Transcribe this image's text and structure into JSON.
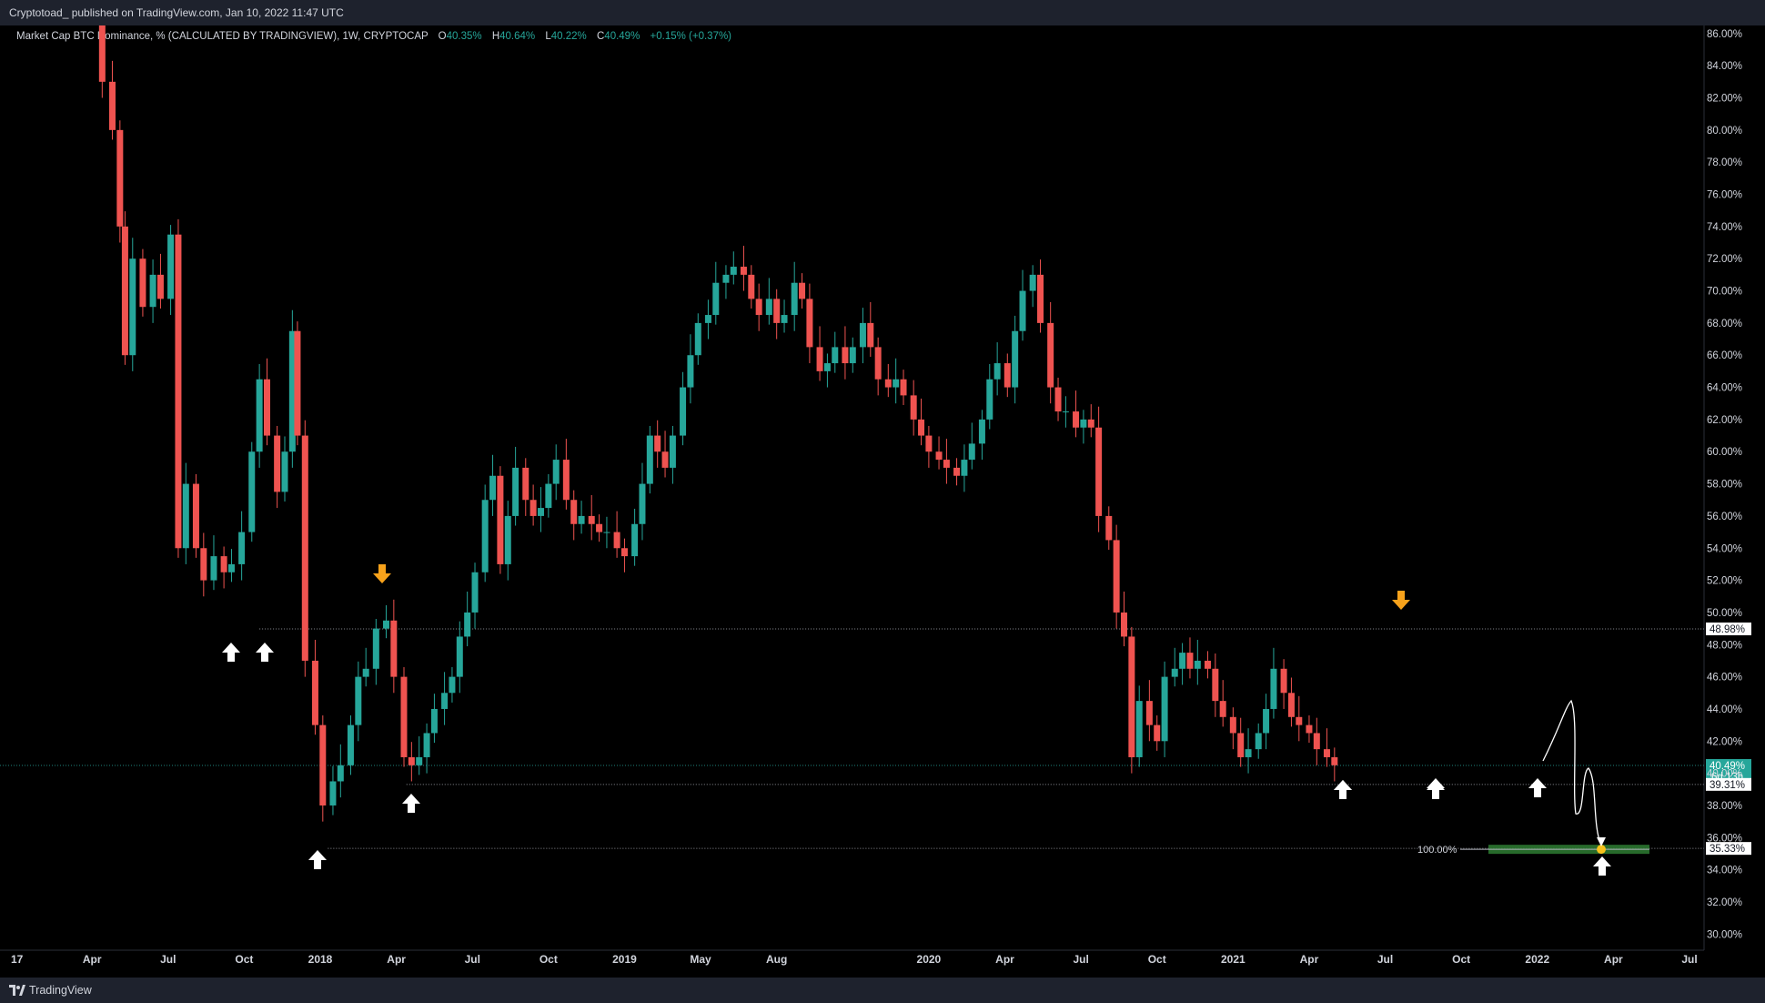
{
  "header": {
    "published": "Cryptotoad_ published on TradingView.com, Jan 10, 2022 11:47 UTC"
  },
  "legend": {
    "symbol": "Market Cap BTC Dominance, % (CALCULATED BY TRADINGVIEW), 1W, CRYPTOCAP",
    "o_label": "O",
    "o_value": "40.35%",
    "h_label": "H",
    "h_value": "40.64%",
    "l_label": "L",
    "l_value": "40.22%",
    "c_label": "C",
    "c_value": "40.49%",
    "change": "+0.15% (+0.37%)"
  },
  "footer": {
    "brand": "TradingView"
  },
  "colors": {
    "up": "#26a69a",
    "down": "#ef5350",
    "background": "#000000",
    "orange_arrow": "#f7a21b",
    "target_zone": "#2e7d32"
  },
  "chart_data": {
    "type": "candlestick",
    "timeframe": "1W",
    "y_unit": "%",
    "ylim": [
      29,
      86.5
    ],
    "y_ticks": [
      "86.00%",
      "84.00%",
      "82.00%",
      "80.00%",
      "78.00%",
      "76.00%",
      "74.00%",
      "72.00%",
      "70.00%",
      "68.00%",
      "66.00%",
      "64.00%",
      "62.00%",
      "60.00%",
      "58.00%",
      "56.00%",
      "54.00%",
      "52.00%",
      "50.00%",
      "48.00%",
      "46.00%",
      "44.00%",
      "42.00%",
      "40.00%",
      "38.00%",
      "36.00%",
      "34.00%",
      "32.00%",
      "30.00%"
    ],
    "x_ticks": [
      {
        "t": 0,
        "label": "17"
      },
      {
        "t": 3.2,
        "label": "Apr"
      },
      {
        "t": 6.2,
        "label": "Jul"
      },
      {
        "t": 9.2,
        "label": "Oct"
      },
      {
        "t": 12.2,
        "label": "2018"
      },
      {
        "t": 15.2,
        "label": "Apr"
      },
      {
        "t": 18.2,
        "label": "Jul"
      },
      {
        "t": 21.2,
        "label": "Oct"
      },
      {
        "t": 24.2,
        "label": "2019"
      },
      {
        "t": 27.2,
        "label": "May"
      },
      {
        "t": 30.2,
        "label": "Aug"
      },
      {
        "t": 36.2,
        "label": "2020"
      },
      {
        "t": 39.2,
        "label": "Apr"
      },
      {
        "t": 42.2,
        "label": "Jul"
      },
      {
        "t": 45.2,
        "label": "Oct"
      },
      {
        "t": 48.2,
        "label": "2021"
      },
      {
        "t": 51.2,
        "label": "Apr"
      },
      {
        "t": 54.2,
        "label": "Jul"
      },
      {
        "t": 57.2,
        "label": "Oct"
      },
      {
        "t": 60.2,
        "label": "2022"
      },
      {
        "t": 63.2,
        "label": "Apr"
      },
      {
        "t": 66.2,
        "label": "Jul"
      }
    ],
    "close_series": [
      [
        2.8,
        86.5
      ],
      [
        3.6,
        83.0
      ],
      [
        4.0,
        80.0
      ],
      [
        4.3,
        74.0
      ],
      [
        4.5,
        66.0
      ],
      [
        4.8,
        72.0
      ],
      [
        5.2,
        69.0
      ],
      [
        5.6,
        71.0
      ],
      [
        5.9,
        69.5
      ],
      [
        6.3,
        73.5
      ],
      [
        6.6,
        54.0
      ],
      [
        6.9,
        58.0
      ],
      [
        7.3,
        54.0
      ],
      [
        7.6,
        52.0
      ],
      [
        8.0,
        53.5
      ],
      [
        8.4,
        52.5
      ],
      [
        8.7,
        53.0
      ],
      [
        9.1,
        55.0
      ],
      [
        9.5,
        60.0
      ],
      [
        9.8,
        64.5
      ],
      [
        10.1,
        61.0
      ],
      [
        10.5,
        57.5
      ],
      [
        10.8,
        60.0
      ],
      [
        11.1,
        67.5
      ],
      [
        11.3,
        61.0
      ],
      [
        11.6,
        47.0
      ],
      [
        12.0,
        43.0
      ],
      [
        12.3,
        38.0
      ],
      [
        12.7,
        39.5
      ],
      [
        13.0,
        40.5
      ],
      [
        13.4,
        43.0
      ],
      [
        13.7,
        46.0
      ],
      [
        14.0,
        46.5
      ],
      [
        14.4,
        49.0
      ],
      [
        14.8,
        49.5
      ],
      [
        15.1,
        46.0
      ],
      [
        15.5,
        41.0
      ],
      [
        15.8,
        40.5
      ],
      [
        16.1,
        41.0
      ],
      [
        16.4,
        42.5
      ],
      [
        16.7,
        44.0
      ],
      [
        17.1,
        45.0
      ],
      [
        17.4,
        46.0
      ],
      [
        17.7,
        48.5
      ],
      [
        18.0,
        50.0
      ],
      [
        18.3,
        52.5
      ],
      [
        18.7,
        57.0
      ],
      [
        19.0,
        58.5
      ],
      [
        19.3,
        53.0
      ],
      [
        19.6,
        56.0
      ],
      [
        19.9,
        59.0
      ],
      [
        20.3,
        57.0
      ],
      [
        20.6,
        56.0
      ],
      [
        20.9,
        56.5
      ],
      [
        21.2,
        58.0
      ],
      [
        21.5,
        59.5
      ],
      [
        21.9,
        57.0
      ],
      [
        22.2,
        55.5
      ],
      [
        22.5,
        56.0
      ],
      [
        22.9,
        55.5
      ],
      [
        23.2,
        55.0
      ],
      [
        23.5,
        55.0
      ],
      [
        23.9,
        54.0
      ],
      [
        24.2,
        53.5
      ],
      [
        24.6,
        55.5
      ],
      [
        24.9,
        58.0
      ],
      [
        25.2,
        61.0
      ],
      [
        25.5,
        60.0
      ],
      [
        25.8,
        59.0
      ],
      [
        26.1,
        61.0
      ],
      [
        26.5,
        64.0
      ],
      [
        26.8,
        66.0
      ],
      [
        27.1,
        68.0
      ],
      [
        27.5,
        68.5
      ],
      [
        27.8,
        70.5
      ],
      [
        28.2,
        71.0
      ],
      [
        28.5,
        71.5
      ],
      [
        28.9,
        71.0
      ],
      [
        29.2,
        69.5
      ],
      [
        29.5,
        68.5
      ],
      [
        29.9,
        69.5
      ],
      [
        30.2,
        68.0
      ],
      [
        30.5,
        68.5
      ],
      [
        30.9,
        70.5
      ],
      [
        31.2,
        69.5
      ],
      [
        31.5,
        66.5
      ],
      [
        31.9,
        65.0
      ],
      [
        32.2,
        65.5
      ],
      [
        32.5,
        66.5
      ],
      [
        32.9,
        65.5
      ],
      [
        33.2,
        66.5
      ],
      [
        33.6,
        68.0
      ],
      [
        33.9,
        66.5
      ],
      [
        34.2,
        64.5
      ],
      [
        34.6,
        64.0
      ],
      [
        34.9,
        64.5
      ],
      [
        35.2,
        63.5
      ],
      [
        35.6,
        62.0
      ],
      [
        35.9,
        61.0
      ],
      [
        36.2,
        60.0
      ],
      [
        36.6,
        59.5
      ],
      [
        36.9,
        59.0
      ],
      [
        37.3,
        58.5
      ],
      [
        37.6,
        59.5
      ],
      [
        37.9,
        60.5
      ],
      [
        38.3,
        62.0
      ],
      [
        38.6,
        64.5
      ],
      [
        38.9,
        65.5
      ],
      [
        39.3,
        64.0
      ],
      [
        39.6,
        67.5
      ],
      [
        39.9,
        70.0
      ],
      [
        40.3,
        71.0
      ],
      [
        40.6,
        68.0
      ],
      [
        41.0,
        64.0
      ],
      [
        41.3,
        62.5
      ],
      [
        41.6,
        62.5
      ],
      [
        42.0,
        61.5
      ],
      [
        42.3,
        62.0
      ],
      [
        42.6,
        61.5
      ],
      [
        42.9,
        56.0
      ],
      [
        43.3,
        54.5
      ],
      [
        43.6,
        50.0
      ],
      [
        43.9,
        48.5
      ],
      [
        44.2,
        41.0
      ],
      [
        44.5,
        44.5
      ],
      [
        44.9,
        43.0
      ],
      [
        45.2,
        42.0
      ],
      [
        45.5,
        46.0
      ],
      [
        45.9,
        46.5
      ],
      [
        46.2,
        47.5
      ],
      [
        46.5,
        46.5
      ],
      [
        46.8,
        47.0
      ],
      [
        47.2,
        46.5
      ],
      [
        47.5,
        44.5
      ],
      [
        47.8,
        43.5
      ],
      [
        48.2,
        42.5
      ],
      [
        48.5,
        41.0
      ],
      [
        48.8,
        41.5
      ],
      [
        49.2,
        42.5
      ],
      [
        49.5,
        44.0
      ],
      [
        49.8,
        46.5
      ],
      [
        50.2,
        45.0
      ],
      [
        50.5,
        43.5
      ],
      [
        50.8,
        43.0
      ],
      [
        51.2,
        42.5
      ],
      [
        51.5,
        41.5
      ],
      [
        51.9,
        41.0
      ],
      [
        52.2,
        40.5
      ]
    ],
    "levels": [
      {
        "value": 48.98,
        "label": "48.98%",
        "style": "dotted"
      },
      {
        "value": 40.49,
        "label": "40.49%",
        "sublabel": "6d 13h",
        "style": "current"
      },
      {
        "value": 39.31,
        "label": "39.31%",
        "style": "dotted"
      },
      {
        "value": 35.33,
        "label": "35.33%",
        "style": "dotted"
      }
    ],
    "annotations": {
      "target_label": "100.00%",
      "target_value": 35.33,
      "white_up_arrows": 10,
      "orange_down_arrows": 2
    }
  }
}
